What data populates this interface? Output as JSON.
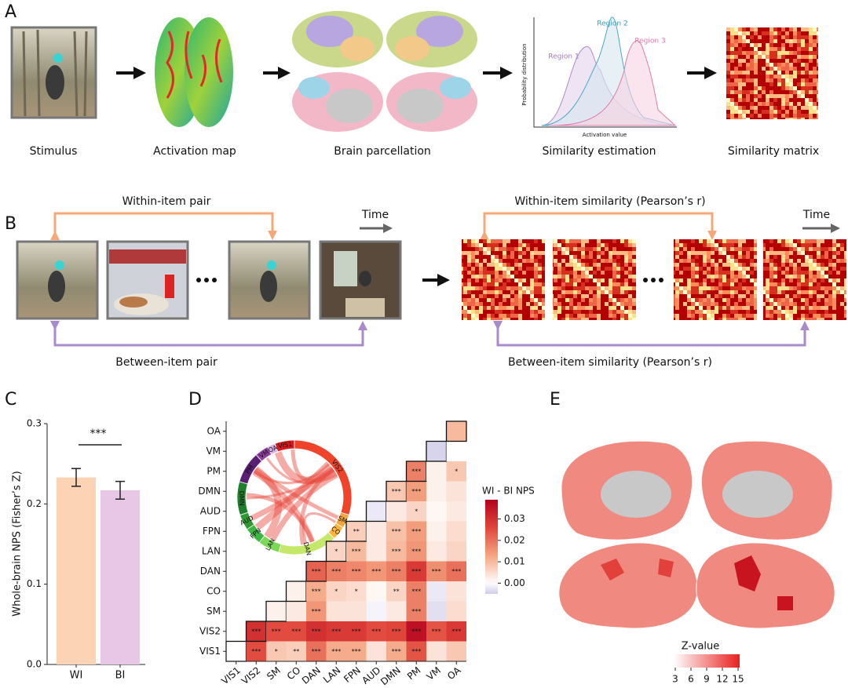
{
  "panel_labels": [
    "A",
    "B",
    "C",
    "D",
    "E"
  ],
  "panel_a": {
    "captions": [
      "Stimulus",
      "Activation map",
      "Brain parcellation",
      "Similarity estimation",
      "Similarity matrix"
    ],
    "density_plot": {
      "series_labels": [
        "Region 1",
        "Region 2",
        "Region 3"
      ],
      "y_label": "Probability distribution",
      "x_label": "Activation value"
    }
  },
  "panel_b": {
    "within_item_pair": "Within-item pair",
    "between_item_pair": "Between-item pair",
    "within_item_similarity": "Within-item similarity (Pearson’s r)",
    "between_item_similarity": "Between-item similarity (Pearson’s r)",
    "time_label": "Time"
  },
  "chart_data": [
    {
      "type": "bar",
      "categories": [
        "WI",
        "BI"
      ],
      "values": [
        0.233,
        0.217
      ],
      "errors": [
        0.011,
        0.011
      ],
      "colors": [
        "#fcd3b4",
        "#e8c6e6"
      ],
      "y_label": "Whole-brain NPS (Fisher’s Z)",
      "ylim": [
        0,
        0.3
      ],
      "yticks": [
        {
          "value": 0,
          "label": "0.0"
        },
        0.1,
        0.2,
        0.3
      ],
      "annotation": "***"
    },
    {
      "type": "heatmap",
      "categories": [
        "VIS1",
        "VIS2",
        "SM",
        "CO",
        "DAN",
        "LAN",
        "FPN",
        "AUD",
        "DMN",
        "PM",
        "VM",
        "OA"
      ],
      "values": [
        [
          0.0,
          0.025,
          0.008,
          0.007,
          0.02,
          0.012,
          0.012,
          0.004,
          0.012,
          0.024,
          0.004,
          0.008
        ],
        [
          null,
          0.03,
          0.025,
          0.025,
          0.03,
          0.028,
          0.028,
          0.025,
          0.026,
          0.036,
          0.024,
          0.028
        ],
        [
          null,
          null,
          0.002,
          0.003,
          0.015,
          0.004,
          0.004,
          -0.001,
          0.003,
          0.018,
          -0.003,
          0.005
        ],
        [
          null,
          null,
          null,
          0.002,
          0.012,
          0.006,
          0.005,
          0.001,
          0.006,
          0.018,
          -0.002,
          0.004
        ],
        [
          null,
          null,
          null,
          null,
          0.022,
          0.018,
          0.017,
          0.015,
          0.018,
          0.028,
          0.016,
          0.02
        ],
        [
          null,
          null,
          null,
          null,
          null,
          0.006,
          0.01,
          0.003,
          0.01,
          0.015,
          0.003,
          0.006
        ],
        [
          null,
          null,
          null,
          null,
          null,
          null,
          0.007,
          0.003,
          0.009,
          0.014,
          0.002,
          0.005
        ],
        [
          null,
          null,
          null,
          null,
          null,
          null,
          null,
          -0.002,
          0.003,
          0.006,
          0.001,
          0.003
        ],
        [
          null,
          null,
          null,
          null,
          null,
          null,
          null,
          null,
          0.008,
          0.014,
          0.002,
          0.004
        ],
        [
          null,
          null,
          null,
          null,
          null,
          null,
          null,
          null,
          null,
          0.018,
          0.002,
          0.008
        ],
        [
          null,
          null,
          null,
          null,
          null,
          null,
          null,
          null,
          null,
          null,
          -0.004,
          0.0
        ],
        [
          null,
          null,
          null,
          null,
          null,
          null,
          null,
          null,
          null,
          null,
          null,
          0.01
        ]
      ],
      "stars": [
        [
          null,
          "***",
          "*",
          "**",
          "***",
          "***",
          "***",
          null,
          "***",
          "***",
          null,
          null
        ],
        [
          null,
          "***",
          "***",
          "***",
          "***",
          "***",
          "***",
          "***",
          "***",
          "***",
          "***",
          "***"
        ],
        [
          null,
          null,
          null,
          null,
          "***",
          null,
          null,
          null,
          null,
          "***",
          null,
          null
        ],
        [
          null,
          null,
          null,
          null,
          "***",
          "*",
          "*",
          null,
          "**",
          "***",
          null,
          null
        ],
        [
          null,
          null,
          null,
          null,
          "***",
          "***",
          "***",
          "***",
          "***",
          "***",
          "***",
          "***"
        ],
        [
          null,
          null,
          null,
          null,
          null,
          "*",
          "***",
          null,
          "***",
          "***",
          null,
          null
        ],
        [
          null,
          null,
          null,
          null,
          null,
          null,
          "**",
          null,
          "***",
          "***",
          null,
          null
        ],
        [
          null,
          null,
          null,
          null,
          null,
          null,
          null,
          null,
          null,
          "*",
          null,
          null
        ],
        [
          null,
          null,
          null,
          null,
          null,
          null,
          null,
          null,
          "***",
          "***",
          null,
          null
        ],
        [
          null,
          null,
          null,
          null,
          null,
          null,
          null,
          null,
          null,
          "***",
          null,
          "*"
        ],
        [
          null,
          null,
          null,
          null,
          null,
          null,
          null,
          null,
          null,
          null,
          null,
          null
        ],
        [
          null,
          null,
          null,
          null,
          null,
          null,
          null,
          null,
          null,
          null,
          null,
          null
        ]
      ],
      "colorbar_label": "WI - BI NPS",
      "clim": [
        -0.005,
        0.039
      ],
      "cticks": [
        {
          "value": 0,
          "label": "0.00"
        },
        {
          "value": 0.01,
          "label": "0.01"
        },
        {
          "value": 0.02,
          "label": "0.02"
        },
        {
          "value": 0.03,
          "label": "0.03"
        }
      ],
      "colors": [
        "#cfc9e8",
        "#ffffff",
        "#f4a582",
        "#e0453a",
        "#b2001d"
      ]
    }
  ],
  "panel_e": {
    "colorbar": {
      "title": "Z-value",
      "lim": [
        2.7,
        15.3
      ],
      "ticks": [
        3,
        6,
        9,
        12,
        15
      ],
      "colors": [
        "#ffffff",
        "#e8201e"
      ]
    }
  }
}
